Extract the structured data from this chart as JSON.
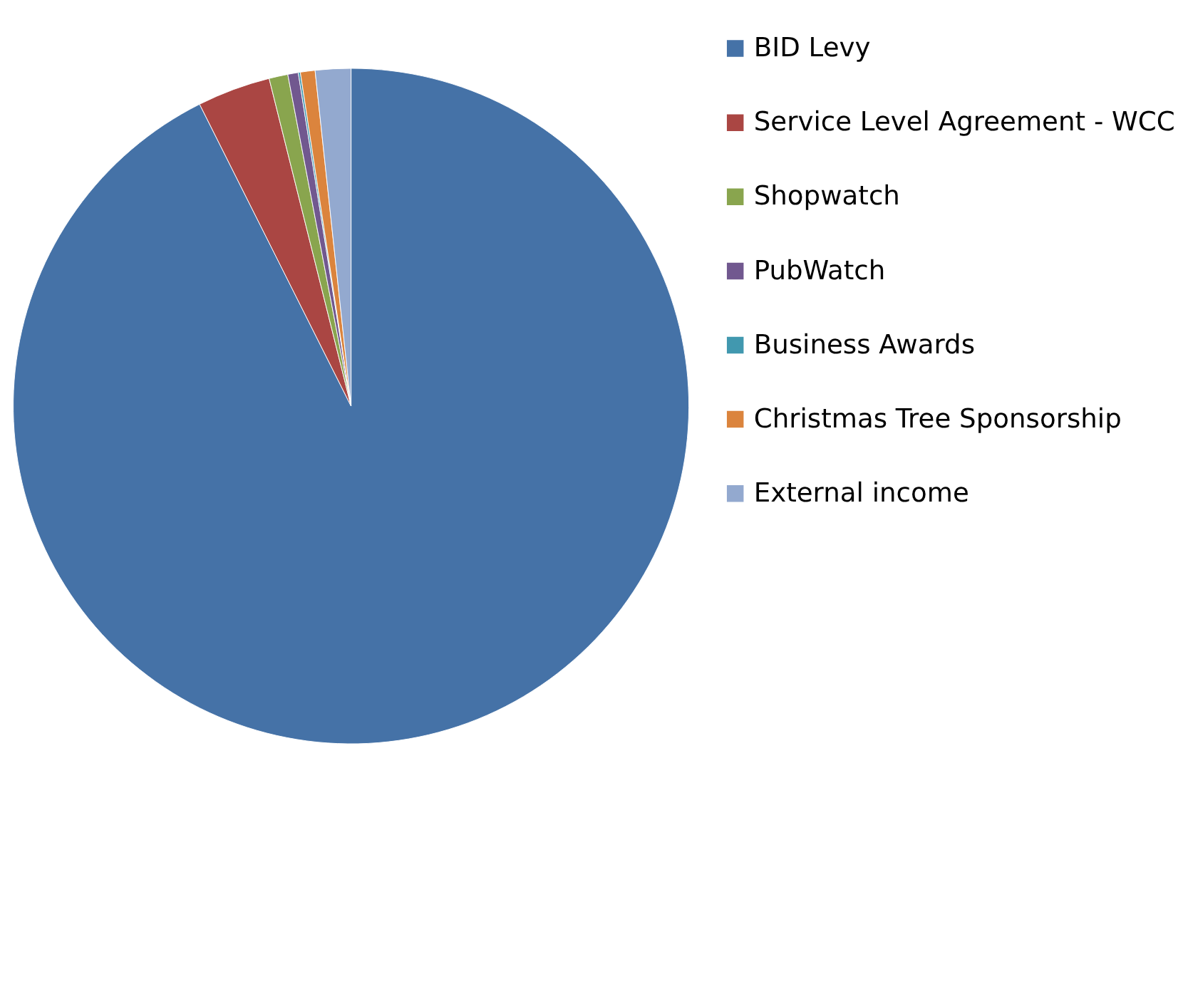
{
  "chart_data": {
    "type": "pie",
    "categories": [
      "BID Levy",
      "Service Level Agreement - WCC",
      "Shopwatch",
      "PubWatch",
      "Business Awards",
      "Christmas Tree Sponsorship",
      "External income"
    ],
    "values": [
      92.6,
      3.5,
      0.9,
      0.5,
      0.1,
      0.7,
      1.7
    ],
    "colors": [
      "#4572a7",
      "#aa4643",
      "#89a54e",
      "#71588f",
      "#4198af",
      "#db843d",
      "#93a9cf"
    ],
    "legend": "right"
  }
}
